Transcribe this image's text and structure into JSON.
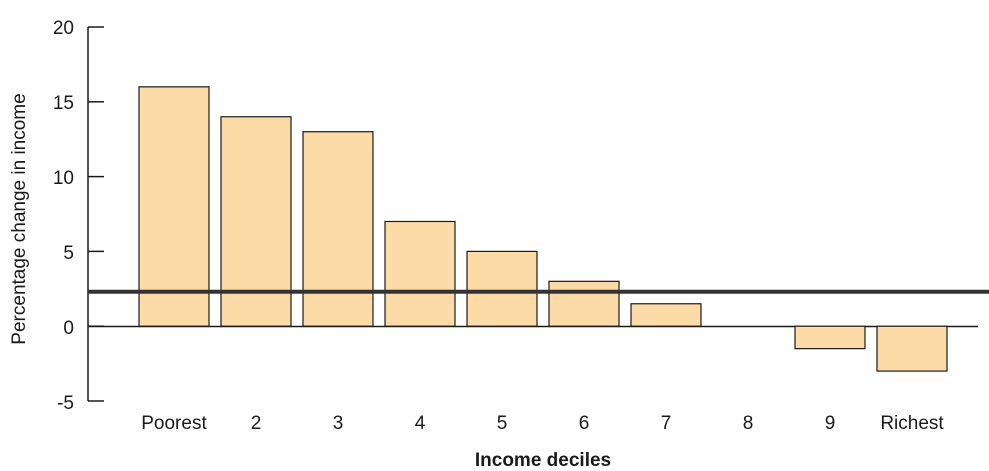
{
  "chart_data": {
    "type": "bar",
    "title": "",
    "xlabel": "Income deciles",
    "ylabel": "Percentage change in income",
    "categories": [
      "Poorest",
      "2",
      "3",
      "4",
      "5",
      "6",
      "7",
      "8",
      "9",
      "Richest"
    ],
    "values": [
      16,
      14,
      13,
      7,
      5,
      3,
      1.5,
      0,
      -1.5,
      -3
    ],
    "ylim": [
      -5,
      20
    ],
    "yticks": [
      "20",
      "15",
      "10",
      "5",
      "0",
      "-5"
    ],
    "reference_line": 2.3,
    "grid": false,
    "legend": "none",
    "colors": {
      "bar_fill": "#FDDBA7",
      "bar_stroke": "#1a1a1a",
      "reference_line": "#333333",
      "axis": "#1a1a1a"
    }
  }
}
